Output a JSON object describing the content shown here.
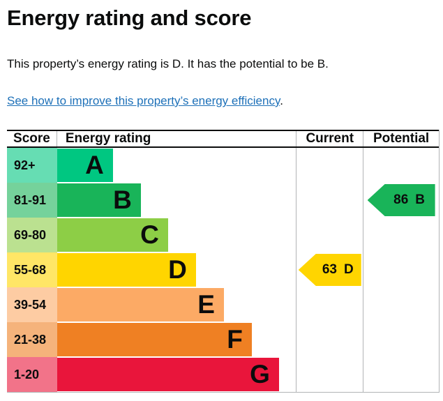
{
  "page": {
    "heading": "Energy rating and score",
    "intro": "This property’s energy rating is D. It has the potential to be B.",
    "improve_link": "See how to improve this property’s energy efficiency",
    "improve_link_suffix": ".",
    "link_color": "#1d70b8",
    "text_color": "#0b0c0c"
  },
  "chart_data": {
    "type": "bar",
    "title": "Energy rating and score",
    "legend_position": "none",
    "columns": {
      "score": "Score",
      "rating": "Energy rating",
      "current": "Current",
      "potential": "Potential"
    },
    "bands": [
      {
        "score_range": "92+",
        "letter": "A",
        "color": "#00c781",
        "tint": "#66ddb3"
      },
      {
        "score_range": "81-91",
        "letter": "B",
        "color": "#19b459",
        "tint": "#75d29b"
      },
      {
        "score_range": "69-80",
        "letter": "C",
        "color": "#8dce46",
        "tint": "#bbe190"
      },
      {
        "score_range": "55-68",
        "letter": "D",
        "color": "#ffd500",
        "tint": "#ffe666"
      },
      {
        "score_range": "39-54",
        "letter": "E",
        "color": "#fcaa65",
        "tint": "#fdcca3"
      },
      {
        "score_range": "21-38",
        "letter": "F",
        "color": "#ef8023",
        "tint": "#f5b37b"
      },
      {
        "score_range": "1-20",
        "letter": "G",
        "color": "#e9153b",
        "tint": "#f27389"
      }
    ],
    "current": {
      "value": 63,
      "band": "D",
      "color": "#ffd500"
    },
    "potential": {
      "value": 86,
      "band": "B",
      "color": "#19b459"
    },
    "grid": "column-separators",
    "border_color": "#b1b4b6"
  }
}
